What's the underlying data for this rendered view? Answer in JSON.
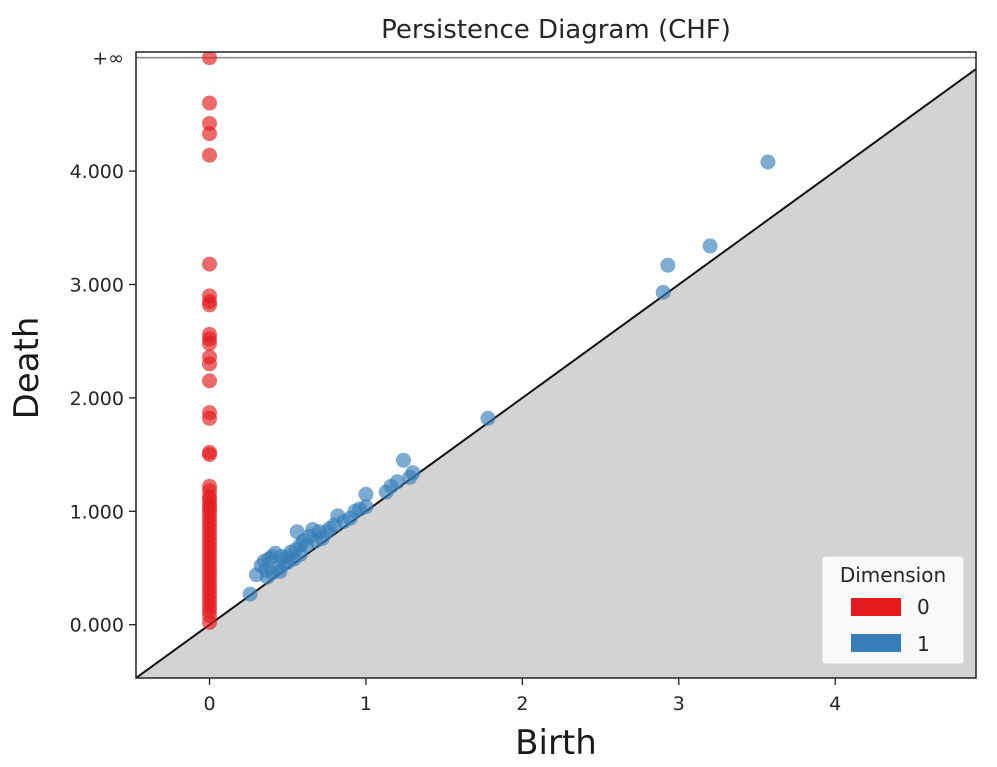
{
  "chart_data": {
    "type": "scatter",
    "title": "Persistence Diagram (CHF)",
    "xlabel": "Birth",
    "ylabel": "Death",
    "xlim": [
      -0.47,
      4.9
    ],
    "ylim": [
      -0.47,
      5.05
    ],
    "x_ticks": [
      0,
      1,
      2,
      3,
      4
    ],
    "x_tick_labels": [
      "0",
      "1",
      "2",
      "3",
      "4"
    ],
    "y_ticks": [
      0,
      1,
      2,
      3,
      4
    ],
    "y_tick_labels": [
      "0.000",
      "1.000",
      "2.000",
      "3.000",
      "4.000"
    ],
    "infinity_value": 5.0,
    "infinity_label": "+∞",
    "grid": false,
    "legend": {
      "title": "Dimension",
      "position": "lower-right",
      "entries": [
        {
          "label": "0",
          "color": "#e41a1c"
        },
        {
          "label": "1",
          "color": "#377eb8"
        }
      ]
    },
    "series": [
      {
        "name": "0",
        "color": "#e41a1c",
        "points": [
          [
            0,
            5.0
          ],
          [
            0,
            4.6
          ],
          [
            0,
            4.42
          ],
          [
            0,
            4.33
          ],
          [
            0,
            4.14
          ],
          [
            0,
            3.18
          ],
          [
            0,
            2.9
          ],
          [
            0,
            2.85
          ],
          [
            0,
            2.82
          ],
          [
            0,
            2.56
          ],
          [
            0,
            2.52
          ],
          [
            0,
            2.48
          ],
          [
            0,
            2.36
          ],
          [
            0,
            2.3
          ],
          [
            0,
            2.15
          ],
          [
            0,
            1.87
          ],
          [
            0,
            1.82
          ],
          [
            0,
            1.52
          ],
          [
            0,
            1.5
          ],
          [
            0,
            1.22
          ],
          [
            0,
            1.18
          ],
          [
            0,
            1.13
          ],
          [
            0,
            1.1
          ],
          [
            0,
            1.06
          ],
          [
            0,
            1.03
          ],
          [
            0,
            1.0
          ],
          [
            0,
            0.96
          ],
          [
            0,
            0.92
          ],
          [
            0,
            0.88
          ],
          [
            0,
            0.84
          ],
          [
            0,
            0.8
          ],
          [
            0,
            0.76
          ],
          [
            0,
            0.72
          ],
          [
            0,
            0.68
          ],
          [
            0,
            0.64
          ],
          [
            0,
            0.6
          ],
          [
            0,
            0.56
          ],
          [
            0,
            0.52
          ],
          [
            0,
            0.48
          ],
          [
            0,
            0.44
          ],
          [
            0,
            0.4
          ],
          [
            0,
            0.36
          ],
          [
            0,
            0.32
          ],
          [
            0,
            0.28
          ],
          [
            0,
            0.24
          ],
          [
            0,
            0.2
          ],
          [
            0,
            0.16
          ],
          [
            0,
            0.12
          ],
          [
            0,
            0.08
          ],
          [
            0,
            0.02
          ]
        ]
      },
      {
        "name": "1",
        "color": "#377eb8",
        "points": [
          [
            3.57,
            4.08
          ],
          [
            3.2,
            3.34
          ],
          [
            2.93,
            3.17
          ],
          [
            2.9,
            2.93
          ],
          [
            1.78,
            1.82
          ],
          [
            1.24,
            1.45
          ],
          [
            1.3,
            1.34
          ],
          [
            1.28,
            1.3
          ],
          [
            1.2,
            1.26
          ],
          [
            1.16,
            1.22
          ],
          [
            1.13,
            1.17
          ],
          [
            1.0,
            1.15
          ],
          [
            1.0,
            1.04
          ],
          [
            0.96,
            1.02
          ],
          [
            0.93,
            1.0
          ],
          [
            0.82,
            0.96
          ],
          [
            0.9,
            0.94
          ],
          [
            0.86,
            0.91
          ],
          [
            0.8,
            0.88
          ],
          [
            0.77,
            0.85
          ],
          [
            0.75,
            0.82
          ],
          [
            0.7,
            0.82
          ],
          [
            0.66,
            0.84
          ],
          [
            0.56,
            0.82
          ],
          [
            0.64,
            0.78
          ],
          [
            0.6,
            0.74
          ],
          [
            0.58,
            0.7
          ],
          [
            0.55,
            0.66
          ],
          [
            0.52,
            0.64
          ],
          [
            0.5,
            0.6
          ],
          [
            0.46,
            0.6
          ],
          [
            0.42,
            0.63
          ],
          [
            0.4,
            0.6
          ],
          [
            0.38,
            0.58
          ],
          [
            0.35,
            0.56
          ],
          [
            0.33,
            0.52
          ],
          [
            0.36,
            0.48
          ],
          [
            0.4,
            0.46
          ],
          [
            0.44,
            0.5
          ],
          [
            0.48,
            0.54
          ],
          [
            0.54,
            0.58
          ],
          [
            0.62,
            0.7
          ],
          [
            0.68,
            0.74
          ],
          [
            0.72,
            0.76
          ],
          [
            0.3,
            0.44
          ],
          [
            0.37,
            0.42
          ],
          [
            0.45,
            0.47
          ],
          [
            0.26,
            0.27
          ],
          [
            0.5,
            0.55
          ],
          [
            0.58,
            0.62
          ]
        ]
      }
    ]
  }
}
